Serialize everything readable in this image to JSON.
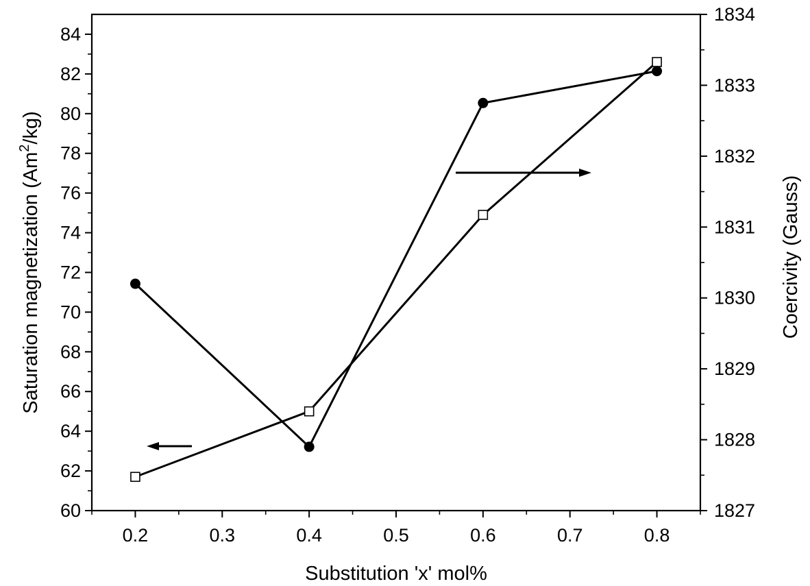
{
  "chart_data": {
    "type": "line",
    "xlabel": "Substitution 'x' mol%",
    "ylabel_left": {
      "main": "Saturation magnetization (Am",
      "sup": "2",
      "tail": "/kg)"
    },
    "ylabel_right": "Coercivity (Gauss)",
    "xlim": [
      0.15,
      0.85
    ],
    "ylim_left": [
      60,
      85
    ],
    "ylim_right": [
      1827,
      1834
    ],
    "x_ticks": [
      "0.2",
      "0.3",
      "0.4",
      "0.5",
      "0.6",
      "0.7",
      "0.8"
    ],
    "y_left_ticks": [
      "60",
      "62",
      "64",
      "66",
      "68",
      "70",
      "72",
      "74",
      "76",
      "78",
      "80",
      "82",
      "84"
    ],
    "y_right_ticks": [
      "1827",
      "1828",
      "1829",
      "1830",
      "1831",
      "1832",
      "1833",
      "1834"
    ],
    "grid": false,
    "series": [
      {
        "axis": "left",
        "marker": "open-square",
        "x": [
          0.2,
          0.4,
          0.6,
          0.8
        ],
        "values": [
          61.7,
          65.0,
          74.9,
          82.6
        ]
      },
      {
        "axis": "right",
        "marker": "filled-circle",
        "x": [
          0.2,
          0.4,
          0.6,
          0.8
        ],
        "values": [
          1830.2,
          1827.9,
          1832.75,
          1833.2
        ]
      }
    ],
    "annotations": [
      {
        "type": "arrow",
        "direction": "left",
        "meaning": "left axis"
      },
      {
        "type": "arrow",
        "direction": "right",
        "meaning": "right axis"
      }
    ]
  }
}
